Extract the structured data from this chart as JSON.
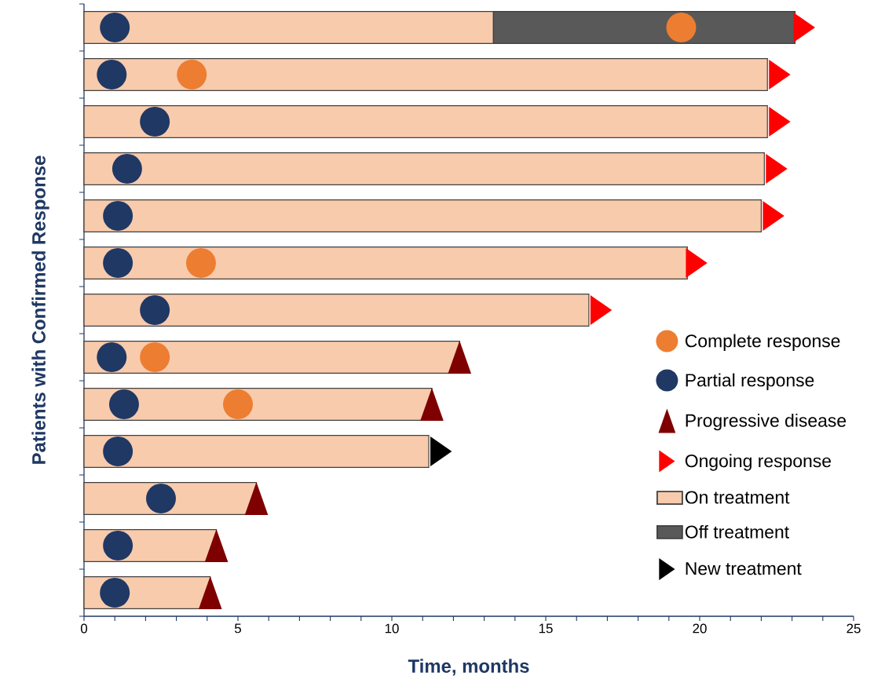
{
  "chart_data": {
    "type": "bar",
    "orientation": "horizontal",
    "stacked": true,
    "xlabel": "Time, months",
    "ylabel": "Patients with Confirmed Response",
    "categories": [
      null,
      null,
      null,
      null,
      null,
      null,
      null,
      null,
      null,
      null,
      null,
      null,
      null
    ],
    "xlim": [
      0,
      25
    ],
    "xticks": [
      0,
      5,
      10,
      15,
      20,
      25
    ],
    "legend": "bottom right",
    "series": [
      {
        "name": "Complete response",
        "type": "scatter",
        "marker": "circle",
        "color": "#ed7d31",
        "values": [
          19.4,
          3.5,
          null,
          null,
          null,
          3.8,
          null,
          2.3,
          5.0,
          null,
          null,
          null,
          null
        ]
      },
      {
        "name": "Partial response",
        "type": "scatter",
        "marker": "circle",
        "color": "#203864",
        "values": [
          1.0,
          0.9,
          2.3,
          1.4,
          1.1,
          1.1,
          2.3,
          0.9,
          1.3,
          1.1,
          2.5,
          1.1,
          1.0
        ]
      },
      {
        "name": "Progressive disease",
        "type": "scatter",
        "marker": "triangle",
        "color": "#7f0000",
        "values": [
          null,
          null,
          null,
          null,
          null,
          null,
          null,
          12.2,
          11.3,
          null,
          5.6,
          4.3,
          4.1
        ]
      },
      {
        "name": "Ongoing response",
        "type": "scatter",
        "color": "#ff0000",
        "values": [
          23.4,
          22.6,
          22.6,
          22.5,
          22.4,
          19.9,
          16.8,
          null,
          null,
          null,
          null,
          null,
          null
        ]
      },
      {
        "name": "On treatment",
        "type": "bar",
        "color": "#f8cbad",
        "values": [
          13.3,
          22.2,
          22.2,
          22.1,
          22.0,
          19.6,
          16.4,
          12.2,
          11.3,
          11.2,
          5.6,
          4.3,
          4.1
        ]
      },
      {
        "name": "Off treatment",
        "type": "bar",
        "color": "#595959",
        "values": [
          9.8,
          null,
          null,
          null,
          null,
          null,
          null,
          null,
          null,
          null,
          null,
          null,
          null
        ]
      },
      {
        "name": "New treatment",
        "type": "scatter",
        "color": "#000000",
        "values": [
          null,
          null,
          null,
          null,
          null,
          null,
          null,
          null,
          null,
          11.6,
          null,
          null,
          null
        ]
      }
    ]
  }
}
